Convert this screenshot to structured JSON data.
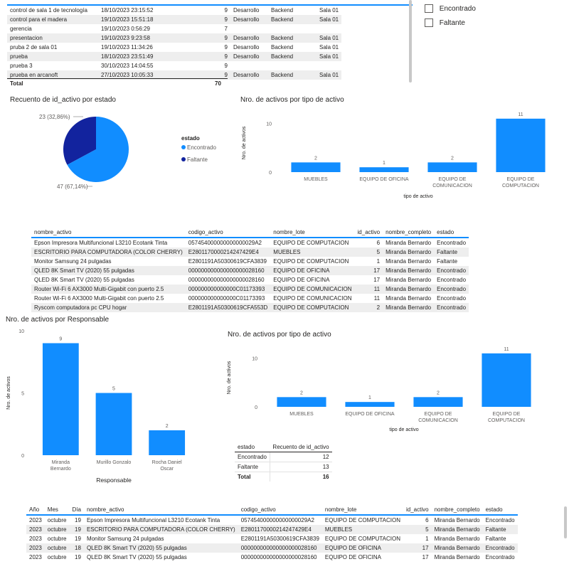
{
  "top_table": {
    "rows": [
      {
        "name": "control de sala 1 de tecnología",
        "date": "18/10/2023 23:15:52",
        "count": "9",
        "dep": "Desarrollo",
        "area": "Backend",
        "sala": "Sala 01"
      },
      {
        "name": "control para el madera",
        "date": "19/10/2023 15:51:18",
        "count": "9",
        "dep": "Desarrollo",
        "area": "Backend",
        "sala": "Sala 01"
      },
      {
        "name": "gerencia",
        "date": "19/10/2023 0:56:29",
        "count": "7",
        "dep": "",
        "area": "",
        "sala": ""
      },
      {
        "name": "presentacion",
        "date": "19/10/2023 9:23:58",
        "count": "9",
        "dep": "Desarrollo",
        "area": "Backend",
        "sala": "Sala 01"
      },
      {
        "name": "pruba 2 de sala 01",
        "date": "19/10/2023 11:34:26",
        "count": "9",
        "dep": "Desarrollo",
        "area": "Backend",
        "sala": "Sala 01"
      },
      {
        "name": "prueba",
        "date": "18/10/2023 23:51:49",
        "count": "9",
        "dep": "Desarrollo",
        "area": "Backend",
        "sala": "Sala 01"
      },
      {
        "name": "prueba 3",
        "date": "30/10/2023 14:04:55",
        "count": "9",
        "dep": "",
        "area": "",
        "sala": ""
      },
      {
        "name": "prueba en arcanoft",
        "date": "27/10/2023 10:05:33",
        "count": "9",
        "dep": "Desarrollo",
        "area": "Backend",
        "sala": "Sala 01"
      }
    ],
    "total_label": "Total",
    "total_value": "70"
  },
  "slicer": {
    "items": [
      {
        "label": "Encontrado"
      },
      {
        "label": "Faltante"
      }
    ]
  },
  "pie": {
    "title": "Recuento de id_activo por estado",
    "legend_title": "estado",
    "label_faltante": "23 (32,86%)",
    "label_encontrado": "47 (67,14%)",
    "colors": {
      "encontrado": "#118dff",
      "faltante": "#12239e"
    },
    "legend": [
      {
        "label": "Encontrado"
      },
      {
        "label": "Faltante"
      }
    ]
  },
  "chart_data": [
    {
      "type": "pie",
      "title": "Recuento de id_activo por estado",
      "categories": [
        "Encontrado",
        "Faltante"
      ],
      "values": [
        47,
        23
      ],
      "labels": [
        "47 (67,14%)",
        "23 (32,86%)"
      ]
    },
    {
      "type": "bar",
      "title": "Nro. de activos por tipo de activo",
      "categories": [
        "MUEBLES",
        "EQUIPO DE OFICINA",
        "EQUIPO DE COMUNICACION",
        "EQUIPO DE COMPUTACION"
      ],
      "values": [
        2,
        1,
        2,
        11
      ],
      "xlabel": "tipo de activo",
      "ylabel": "Nro. de activos",
      "ylim": [
        0,
        11
      ],
      "yticks": [
        "0",
        "10"
      ]
    },
    {
      "type": "bar",
      "title": "Nro. de activos por Responsable",
      "categories": [
        "Miranda Bernardo",
        "Murillo Gonzalo",
        "Rocha Daniel Oscar"
      ],
      "values": [
        9,
        5,
        2
      ],
      "xlabel": "Responsable",
      "ylabel": "Nro. de activos",
      "ylim": [
        0,
        10
      ],
      "yticks": [
        "0",
        "5",
        "10"
      ]
    },
    {
      "type": "bar",
      "title": "Nro. de activos por tipo de activo",
      "categories": [
        "MUEBLES",
        "EQUIPO DE OFICINA",
        "EQUIPO DE COMUNICACION",
        "EQUIPO DE COMPUTACION"
      ],
      "values": [
        2,
        1,
        2,
        11
      ],
      "xlabel": "tipo de activo",
      "ylabel": "Nro. de activos",
      "ylim": [
        0,
        11
      ],
      "yticks": [
        "0",
        "10"
      ]
    }
  ],
  "bar1": {
    "title": "Nro. de activos por tipo de activo",
    "xlabel": "tipo de activo",
    "ylabel": "Nro. de activos",
    "color": "#118dff"
  },
  "bar2": {
    "title": "Nro. de activos por Responsable",
    "xlabel": "Responsable",
    "ylabel": "Nro. de activos",
    "color": "#118dff"
  },
  "bar3": {
    "title": "Nro. de activos por tipo de activo",
    "xlabel": "tipo de activo",
    "ylabel": "Nro. de activos",
    "color": "#118dff"
  },
  "mid_table": {
    "headers": [
      "nombre_activo",
      "codigo_activo",
      "nombre_lote",
      "id_activo",
      "nombre_completo",
      "estado"
    ],
    "rows": [
      [
        "Epson Impresora Multifuncional L3210 Ecotank Tinta",
        "057454000000000000029A2",
        "EQUIPO DE COMPUTACION",
        "6",
        "Miranda Bernardo",
        "Encontrado"
      ],
      [
        "ESCRITORIO PARA COMPUTADORA (COLOR CHERRY)",
        "E2801170000214247429E4",
        "MUEBLES",
        "5",
        "Miranda Bernardo",
        "Faltante"
      ],
      [
        "Monitor Samsung 24 pulgadas",
        "E2801191A50300619CFA3839",
        "EQUIPO DE COMPUTACION",
        "1",
        "Miranda Bernardo",
        "Faltante"
      ],
      [
        "QLED 8K Smart TV (2020) 55 pulgadas",
        "000000000000000000028160",
        "EQUIPO DE OFICINA",
        "17",
        "Miranda Bernardo",
        "Encontrado"
      ],
      [
        "QLED 8K Smart TV (2020) 55 pulgadas",
        "000000000000000000028160",
        "EQUIPO DE OFICINA",
        "17",
        "Miranda Bernardo",
        "Encontrado"
      ],
      [
        "Router Wi-Fi 6 AX3000 Multi-Gigabit con puerto 2.5",
        "000000000000000C01173393",
        "EQUIPO DE COMUNICACION",
        "11",
        "Miranda Bernardo",
        "Encontrado"
      ],
      [
        "Router Wi-Fi 6 AX3000 Multi-Gigabit con puerto 2.5",
        "000000000000000C01173393",
        "EQUIPO DE COMUNICACION",
        "11",
        "Miranda Bernardo",
        "Encontrado"
      ],
      [
        "Ryscom computadora pc CPU hogar",
        "E2801191A50300619CFA553D",
        "EQUIPO DE COMPUTACION",
        "2",
        "Miranda Bernardo",
        "Encontrado"
      ]
    ]
  },
  "estado_table": {
    "headers": [
      "estado",
      "Recuento de id_activo"
    ],
    "rows": [
      [
        "Encontrado",
        "12"
      ],
      [
        "Faltante",
        "13"
      ]
    ],
    "total_label": "Total",
    "total_value": "16"
  },
  "bottom_table": {
    "headers": [
      "Año",
      "Mes",
      "Día",
      "nombre_activo",
      "codigo_activo",
      "nombre_lote",
      "id_activo",
      "nombre_completo",
      "estado"
    ],
    "rows": [
      [
        "2023",
        "octubre",
        "19",
        "Epson Impresora Multifuncional L3210 Ecotank Tinta",
        "057454000000000000029A2",
        "EQUIPO DE COMPUTACION",
        "6",
        "Miranda Bernardo",
        "Encontrado"
      ],
      [
        "2023",
        "octubre",
        "19",
        "ESCRITORIO PARA COMPUTADORA (COLOR CHERRY)",
        "E2801170000214247429E4",
        "MUEBLES",
        "5",
        "Miranda Bernardo",
        "Faltante"
      ],
      [
        "2023",
        "octubre",
        "19",
        "Monitor Samsung 24 pulgadas",
        "E2801191A50300619CFA3839",
        "EQUIPO DE COMPUTACION",
        "1",
        "Miranda Bernardo",
        "Faltante"
      ],
      [
        "2023",
        "octubre",
        "18",
        "QLED 8K Smart TV (2020) 55 pulgadas",
        "000000000000000000028160",
        "EQUIPO DE OFICINA",
        "17",
        "Miranda Bernardo",
        "Encontrado"
      ],
      [
        "2023",
        "octubre",
        "19",
        "QLED 8K Smart TV (2020) 55 pulgadas",
        "000000000000000000028160",
        "EQUIPO DE OFICINA",
        "17",
        "Miranda Bernardo",
        "Encontrado"
      ]
    ]
  }
}
